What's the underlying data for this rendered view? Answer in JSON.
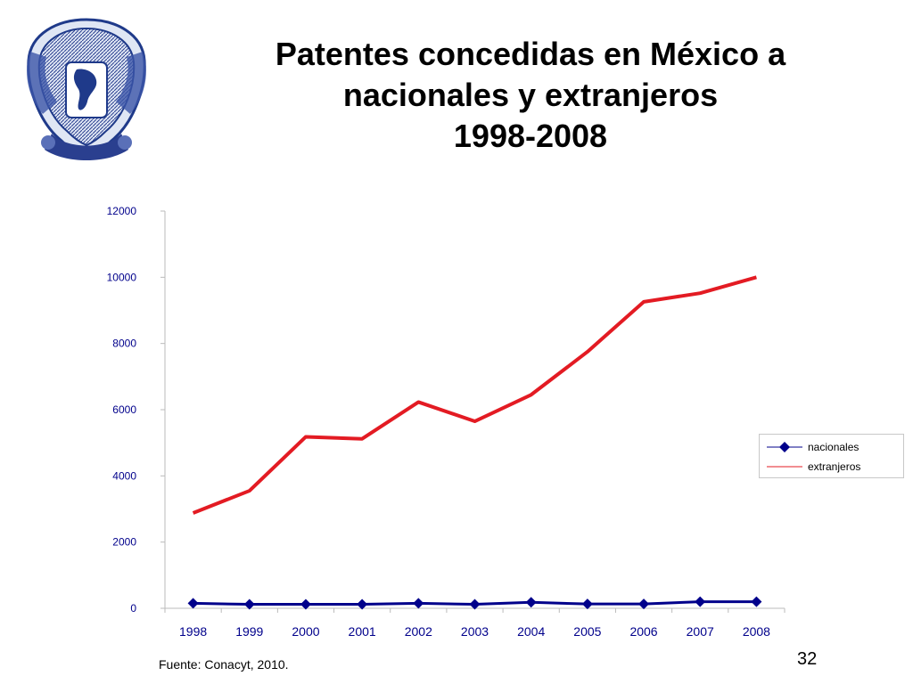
{
  "slide": {
    "title_lines": [
      "Patentes concedidas en México a",
      "nacionales y extranjeros",
      "1998-2008"
    ],
    "source": "Fuente:  Conacyt, 2010.",
    "page_number": "32",
    "logo_icon": "unam-crest-icon"
  },
  "chart_data": {
    "type": "line",
    "categories": [
      "1998",
      "1999",
      "2000",
      "2001",
      "2002",
      "2003",
      "2004",
      "2005",
      "2006",
      "2007",
      "2008"
    ],
    "series": [
      {
        "name": "nacionales",
        "color": "#00008b",
        "marker": "diamond",
        "values": [
          150,
          120,
          120,
          120,
          150,
          120,
          180,
          130,
          130,
          200,
          200
        ]
      },
      {
        "name": "extranjeros",
        "color": "#e31b23",
        "marker": "none",
        "values": [
          2880,
          3550,
          5180,
          5120,
          6230,
          5650,
          6450,
          7750,
          9260,
          9520,
          10000
        ]
      }
    ],
    "yticks": [
      "0",
      "2000",
      "4000",
      "6000",
      "8000",
      "10000",
      "12000"
    ],
    "ylim": [
      0,
      12000
    ],
    "grid": false,
    "legend_position": "right",
    "tick_label_color": "#00008b"
  }
}
